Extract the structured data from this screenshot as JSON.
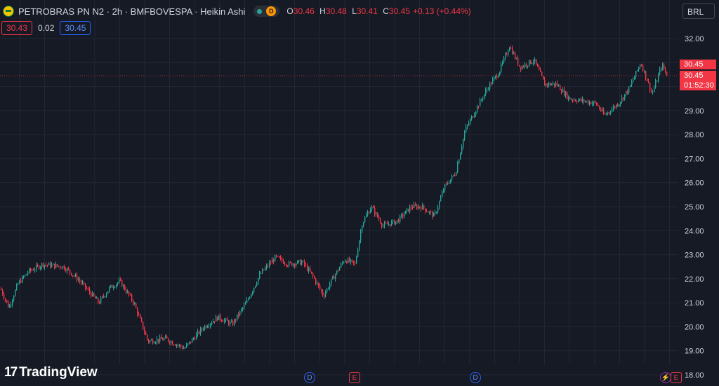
{
  "header": {
    "symbol": "PETROBRAS PN N2 · 2h · BMFBOVESPA · Heikin Ashi",
    "logo_icon": "petrobras-logo-icon",
    "status_dot": "market-open-dot-icon",
    "delay_badge": "D",
    "ohlc": {
      "o_label": "O",
      "o_value": "30.46",
      "h_label": "H",
      "h_value": "30.48",
      "l_label": "L",
      "l_value": "30.41",
      "c_label": "C",
      "c_value": "30.45",
      "change": "+0.13 (+0.44%)"
    }
  },
  "indicators": {
    "bid": "30.43",
    "spread": "0.02",
    "ask": "30.45"
  },
  "currency": "BRL",
  "price_labels": {
    "last": "30.45",
    "current": "30.45",
    "countdown": "01:52:30"
  },
  "branding": {
    "name": "TradingView",
    "mark": "17"
  },
  "events": {
    "dividend_1": "D",
    "earnings_1": "E",
    "dividend_2": "D",
    "split_icon": "lightning-icon",
    "earnings_2": "E"
  },
  "colors": {
    "background": "#161a25",
    "up": "#26a69a",
    "down": "#f23645",
    "grid": "#232733",
    "axis_text": "#d1d4dc"
  },
  "chart_data": {
    "type": "candlestick",
    "style": "Heikin Ashi",
    "y_axis_ticks": [
      "32.00",
      "31.00",
      "30.00",
      "29.00",
      "28.00",
      "27.00",
      "26.00",
      "25.00",
      "24.00",
      "23.00",
      "22.00",
      "21.00",
      "20.00",
      "19.00",
      "18.00"
    ],
    "ylim": [
      18,
      32
    ],
    "last_price": 30.45,
    "anchors": [
      [
        0,
        21.6
      ],
      [
        12,
        20.8
      ],
      [
        25,
        21.8
      ],
      [
        40,
        22.3
      ],
      [
        60,
        22.6
      ],
      [
        90,
        22.5
      ],
      [
        110,
        22.0
      ],
      [
        125,
        21.5
      ],
      [
        140,
        21.0
      ],
      [
        155,
        21.6
      ],
      [
        170,
        21.9
      ],
      [
        190,
        21.0
      ],
      [
        210,
        19.4
      ],
      [
        235,
        19.5
      ],
      [
        262,
        19.1
      ],
      [
        290,
        20.0
      ],
      [
        310,
        20.4
      ],
      [
        330,
        20.1
      ],
      [
        350,
        21.0
      ],
      [
        370,
        22.2
      ],
      [
        392,
        22.9
      ],
      [
        410,
        22.6
      ],
      [
        430,
        22.7
      ],
      [
        445,
        22.1
      ],
      [
        460,
        21.3
      ],
      [
        475,
        22.1
      ],
      [
        490,
        22.8
      ],
      [
        505,
        22.6
      ],
      [
        515,
        24.3
      ],
      [
        528,
        25.0
      ],
      [
        545,
        24.2
      ],
      [
        565,
        24.4
      ],
      [
        585,
        25.0
      ],
      [
        600,
        25.0
      ],
      [
        618,
        24.6
      ],
      [
        632,
        25.8
      ],
      [
        648,
        26.4
      ],
      [
        662,
        28.2
      ],
      [
        680,
        29.2
      ],
      [
        695,
        30.0
      ],
      [
        710,
        30.6
      ],
      [
        725,
        31.7
      ],
      [
        740,
        30.8
      ],
      [
        760,
        31.1
      ],
      [
        775,
        30.1
      ],
      [
        792,
        30.1
      ],
      [
        810,
        29.5
      ],
      [
        830,
        29.4
      ],
      [
        848,
        29.3
      ],
      [
        860,
        28.8
      ],
      [
        880,
        29.3
      ],
      [
        895,
        29.9
      ],
      [
        912,
        31.0
      ],
      [
        928,
        29.7
      ],
      [
        942,
        30.9
      ],
      [
        950,
        30.45
      ]
    ]
  }
}
